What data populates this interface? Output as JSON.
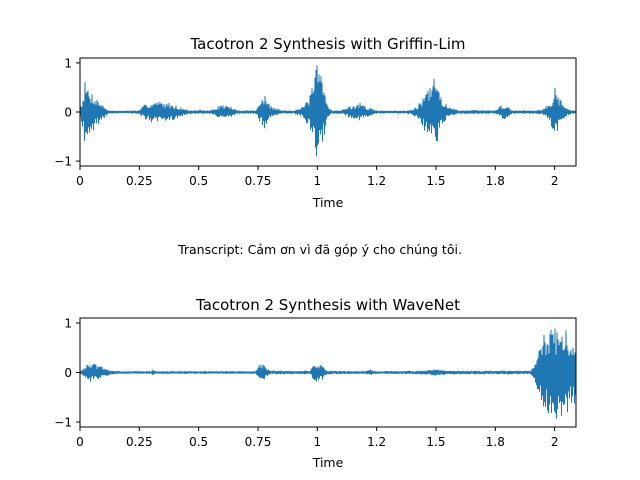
{
  "chart_data": [
    {
      "type": "line",
      "title": "Tacotron 2 Synthesis with Griffin-Lim",
      "xlabel": "Time",
      "ylabel": "",
      "xlim": [
        0,
        2.09
      ],
      "ylim": [
        -1.1,
        1.1
      ],
      "x_ticks": [
        0,
        0.25,
        0.5,
        0.75,
        1,
        1.25,
        1.5,
        1.75,
        2
      ],
      "x_tick_labels": [
        "0",
        "0.25",
        "0.5",
        "0.75",
        "1",
        "1.2",
        "1.5",
        "1.8",
        "2"
      ],
      "y_ticks": [
        -1,
        0,
        1
      ],
      "y_tick_labels": [
        "−1",
        "0",
        "1"
      ],
      "color": "#1f77b4",
      "grid": false,
      "series": [
        {
          "envelope": {
            "t": [
              0,
              0.01,
              0.02,
              0.04,
              0.06,
              0.1,
              0.12,
              0.15,
              0.18,
              0.25,
              0.28,
              0.32,
              0.38,
              0.42,
              0.46,
              0.55,
              0.6,
              0.63,
              0.66,
              0.74,
              0.76,
              0.78,
              0.8,
              0.85,
              0.9,
              0.94,
              0.97,
              1.0,
              1.02,
              1.04,
              1.06,
              1.1,
              1.13,
              1.18,
              1.2,
              1.22,
              1.25,
              1.3,
              1.38,
              1.42,
              1.46,
              1.48,
              1.5,
              1.52,
              1.55,
              1.6,
              1.75,
              1.78,
              1.8,
              1.82,
              1.86,
              1.9,
              1.95,
              1.98,
              2.0,
              2.02,
              2.04,
              2.06,
              2.09
            ],
            "amp": [
              0.02,
              0.3,
              0.62,
              0.45,
              0.35,
              0.12,
              0.03,
              0.02,
              0.02,
              0.03,
              0.18,
              0.22,
              0.18,
              0.1,
              0.03,
              0.03,
              0.15,
              0.12,
              0.03,
              0.03,
              0.22,
              0.35,
              0.12,
              0.03,
              0.03,
              0.1,
              0.35,
              1.0,
              0.72,
              0.2,
              0.03,
              0.03,
              0.1,
              0.18,
              0.12,
              0.08,
              0.03,
              0.02,
              0.03,
              0.1,
              0.45,
              0.5,
              0.8,
              0.35,
              0.1,
              0.03,
              0.03,
              0.15,
              0.12,
              0.03,
              0.03,
              0.03,
              0.05,
              0.18,
              0.5,
              0.3,
              0.12,
              0.05,
              0.02
            ]
          }
        }
      ]
    },
    {
      "type": "line",
      "title": "Tacotron 2 Synthesis with WaveNet",
      "xlabel": "Time",
      "ylabel": "",
      "xlim": [
        0,
        2.09
      ],
      "ylim": [
        -1.1,
        1.1
      ],
      "x_ticks": [
        0,
        0.25,
        0.5,
        0.75,
        1,
        1.25,
        1.5,
        1.75,
        2
      ],
      "x_tick_labels": [
        "0",
        "0.25",
        "0.5",
        "0.75",
        "1",
        "1.2",
        "1.5",
        "1.8",
        "2"
      ],
      "y_ticks": [
        -1,
        0,
        1
      ],
      "y_tick_labels": [
        "−1",
        "0",
        "1"
      ],
      "color": "#1f77b4",
      "grid": false,
      "series": [
        {
          "envelope": {
            "t": [
              0,
              0.02,
              0.04,
              0.07,
              0.1,
              0.12,
              0.15,
              0.3,
              0.31,
              0.32,
              0.5,
              0.74,
              0.76,
              0.78,
              0.8,
              0.97,
              0.99,
              1.02,
              1.04,
              1.2,
              1.22,
              1.25,
              1.45,
              1.5,
              1.55,
              1.9,
              1.92,
              1.95,
              2.0,
              2.02,
              2.05,
              2.09
            ],
            "amp": [
              0.02,
              0.1,
              0.2,
              0.15,
              0.1,
              0.05,
              0.02,
              0.02,
              0.06,
              0.02,
              0.02,
              0.02,
              0.2,
              0.12,
              0.03,
              0.03,
              0.22,
              0.15,
              0.03,
              0.02,
              0.06,
              0.02,
              0.03,
              0.06,
              0.03,
              0.03,
              0.2,
              0.75,
              0.92,
              0.95,
              0.85,
              0.6
            ]
          }
        }
      ]
    }
  ],
  "transcript": "Transcript: Cảm ơn vì đã góp ý cho chúng tôi."
}
